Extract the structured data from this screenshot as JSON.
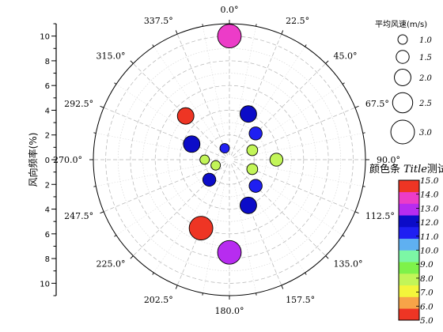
{
  "chart_data": {
    "type": "scatter",
    "subtype": "polar-bubble",
    "ylabel": "风向频率(%)",
    "r_axis": {
      "range": [
        0,
        11
      ],
      "ticks": [
        0,
        2,
        4,
        6,
        8,
        10
      ],
      "tick_labels": [
        "0",
        "2",
        "4",
        "6",
        "8",
        "10"
      ]
    },
    "angle_axis": {
      "step": 22.5,
      "direction": "clockwise",
      "zero": "top",
      "labels": [
        "0.0°",
        "22.5°",
        "45.0°",
        "67.5°",
        "90.0°",
        "112.5°",
        "135.0°",
        "157.5°",
        "180.0°",
        "202.5°",
        "225.0°",
        "247.5°",
        "270.0°",
        "292.5°",
        "315.0°",
        "337.5°"
      ]
    },
    "grid": true,
    "points": [
      {
        "angle": 0.0,
        "r": 10.0,
        "speed": 3.0,
        "color_value": 14.5
      },
      {
        "angle": 22.5,
        "r": 4.0,
        "speed": 2.0,
        "color_value": 12.5
      },
      {
        "angle": 45.0,
        "r": 3.0,
        "speed": 1.5,
        "color_value": 11.5
      },
      {
        "angle": 67.5,
        "r": 2.0,
        "speed": 1.2,
        "color_value": 8.5
      },
      {
        "angle": 90.0,
        "r": 3.8,
        "speed": 1.5,
        "color_value": 8.5
      },
      {
        "angle": 112.5,
        "r": 2.0,
        "speed": 1.2,
        "color_value": 8.5
      },
      {
        "angle": 135.0,
        "r": 3.0,
        "speed": 1.5,
        "color_value": 11.5
      },
      {
        "angle": 157.5,
        "r": 4.0,
        "speed": 2.0,
        "color_value": 12.5
      },
      {
        "angle": 180.0,
        "r": 7.5,
        "speed": 3.0,
        "color_value": 13.5
      },
      {
        "angle": 202.5,
        "r": 6.0,
        "speed": 3.0,
        "color_value": 5.5
      },
      {
        "angle": 225.0,
        "r": 2.3,
        "speed": 1.5,
        "color_value": 12.5
      },
      {
        "angle": 247.5,
        "r": 1.2,
        "speed": 1.0,
        "color_value": 8.5
      },
      {
        "angle": 270.0,
        "r": 2.0,
        "speed": 1.0,
        "color_value": 8.5
      },
      {
        "angle": 292.5,
        "r": 3.3,
        "speed": 2.0,
        "color_value": 12.5
      },
      {
        "angle": 315.0,
        "r": 5.0,
        "speed": 2.0,
        "color_value": 5.5
      },
      {
        "angle": 337.5,
        "r": 1.0,
        "speed": 1.0,
        "color_value": 11.5
      }
    ],
    "size_legend": {
      "title": "平均风速(m/s)",
      "entries": [
        {
          "value": 1.0,
          "label": "1.0"
        },
        {
          "value": 1.5,
          "label": "1.5"
        },
        {
          "value": 2.0,
          "label": "2.0"
        },
        {
          "value": 2.5,
          "label": "2.5"
        },
        {
          "value": 3.0,
          "label": "3.0"
        }
      ]
    },
    "colorbar": {
      "title": "颜色条",
      "title_italic": "Title",
      "title_suffix": "测试",
      "range": [
        5.0,
        15.0
      ],
      "ticks": [
        "5.0",
        "6.0",
        "7.0",
        "8.0",
        "9.0",
        "10.0",
        "11.0",
        "12.0",
        "13.0",
        "14.0",
        "15.0"
      ],
      "colors": [
        "#ee3524",
        "#f7a448",
        "#f3f53b",
        "#c2f558",
        "#7ef24a",
        "#7cf7a5",
        "#5fb0f1",
        "#1f1ff2",
        "#0c0cc8",
        "#b72cf0",
        "#ec3cc8",
        "#ee3524"
      ]
    }
  }
}
